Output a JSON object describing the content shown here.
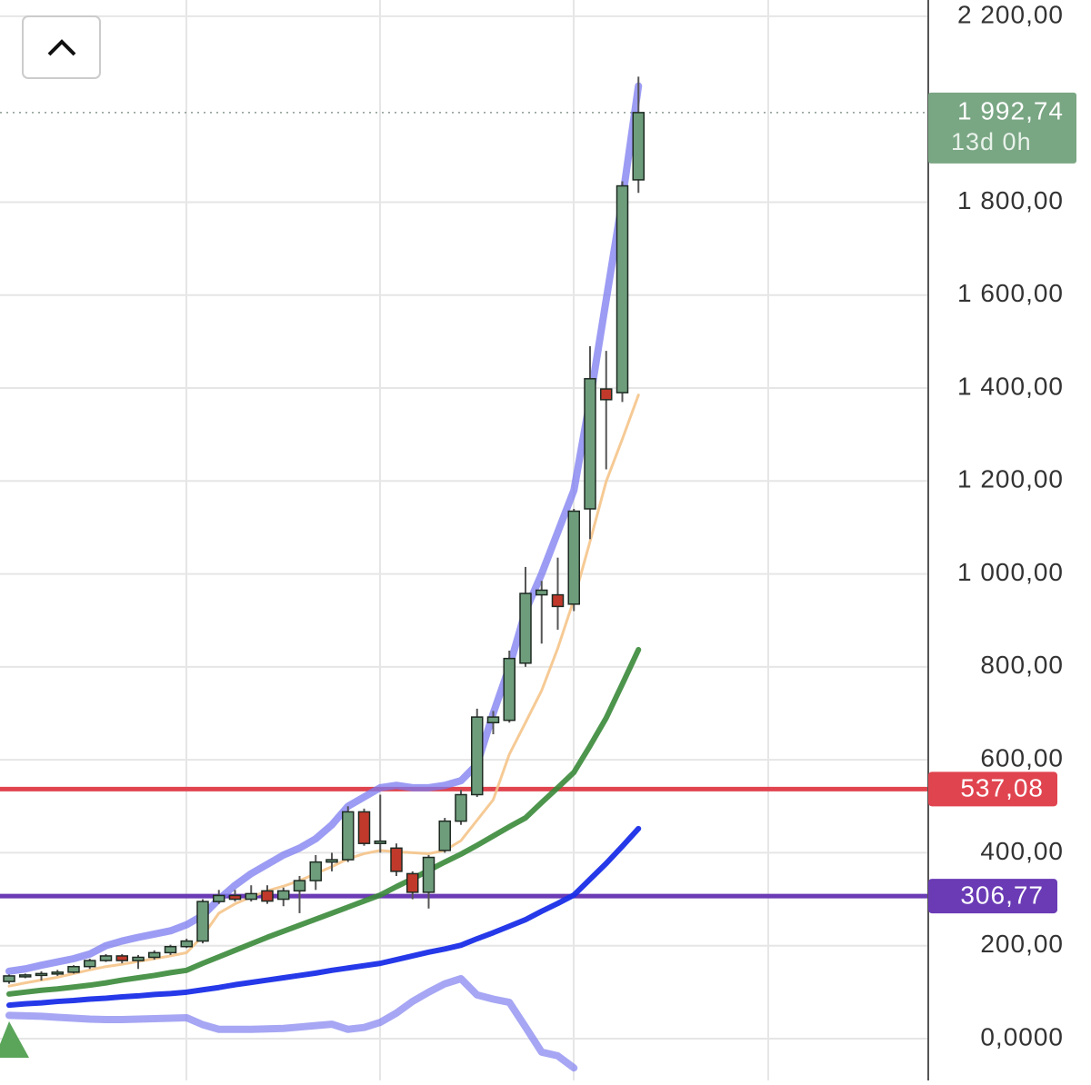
{
  "chart_data": {
    "type": "candlestick",
    "open": [
      123,
      135,
      137,
      140,
      143,
      155,
      168,
      178,
      168,
      175,
      185,
      198,
      210,
      295,
      308,
      300,
      318,
      300,
      318,
      340,
      380,
      385,
      488,
      420,
      410,
      355,
      315,
      405,
      468,
      525,
      680,
      685,
      808,
      955,
      955,
      935,
      1140,
      1398,
      1390,
      1848
    ],
    "high": [
      138,
      140,
      145,
      148,
      158,
      172,
      182,
      182,
      180,
      190,
      202,
      215,
      300,
      320,
      320,
      330,
      330,
      325,
      350,
      395,
      400,
      500,
      495,
      525,
      420,
      360,
      395,
      475,
      535,
      710,
      705,
      835,
      1015,
      985,
      1035,
      1140,
      1490,
      1480,
      1845,
      2070
    ],
    "low": [
      118,
      130,
      125,
      135,
      140,
      150,
      165,
      162,
      150,
      170,
      180,
      195,
      205,
      290,
      295,
      295,
      290,
      285,
      270,
      320,
      360,
      380,
      415,
      400,
      350,
      300,
      280,
      400,
      460,
      520,
      655,
      680,
      800,
      850,
      880,
      920,
      1075,
      1225,
      1370,
      1820
    ],
    "close": [
      135,
      137,
      140,
      143,
      155,
      168,
      178,
      168,
      175,
      185,
      198,
      210,
      295,
      308,
      300,
      312,
      296,
      318,
      340,
      380,
      385,
      488,
      420,
      425,
      360,
      315,
      390,
      468,
      525,
      692,
      692,
      818,
      958,
      965,
      930,
      1135,
      1420,
      1375,
      1835,
      1992.74
    ],
    "up_color": "#6e9d7c",
    "down_color": "#c0392b",
    "overlays": [
      {
        "color": "#7b7bf0",
        "values": [
          145,
          150,
          158,
          165,
          172,
          182,
          200,
          210,
          218,
          225,
          232,
          245,
          265,
          300,
          330,
          355,
          375,
          395,
          410,
          430,
          460,
          500,
          520,
          540,
          545,
          540,
          540,
          545,
          555,
          590,
          700,
          800,
          920,
          1000,
          1090,
          1180,
          1375,
          1590,
          1805,
          2050
        ]
      },
      {
        "color": "#f5c48a",
        "values": [
          113,
          120,
          126,
          132,
          140,
          148,
          155,
          160,
          166,
          172,
          178,
          185,
          221,
          270,
          290,
          305,
          318,
          328,
          340,
          355,
          370,
          387,
          398,
          405,
          402,
          400,
          398,
          405,
          426,
          470,
          514,
          612,
          680,
          749,
          840,
          945,
          1070,
          1199,
          1290,
          1385
        ]
      },
      {
        "color": "#3a8a3a",
        "values": [
          96,
          100,
          104,
          107,
          111,
          115,
          120,
          126,
          131,
          136,
          142,
          147,
          162,
          176,
          190,
          204,
          218,
          231,
          244,
          257,
          270,
          283,
          296,
          309,
          327,
          344,
          362,
          380,
          397,
          416,
          436,
          456,
          475,
          508,
          540,
          573,
          630,
          690,
          763,
          837
        ]
      },
      {
        "color": "#1a2ee8",
        "values": [
          72,
          75,
          77,
          80,
          82,
          85,
          87,
          90,
          92,
          95,
          97,
          100,
          105,
          110,
          116,
          121,
          126,
          131,
          136,
          141,
          147,
          152,
          157,
          162,
          170,
          178,
          186,
          193,
          201,
          215,
          228,
          242,
          256,
          274,
          291,
          309,
          343,
          377,
          414,
          452
        ]
      },
      {
        "color": "#8080f0",
        "values": [
          50,
          49,
          48,
          46,
          44,
          42,
          41,
          41,
          42,
          43,
          44,
          45,
          30,
          20,
          20,
          20,
          21,
          22,
          25,
          28,
          31,
          20,
          24,
          35,
          55,
          80,
          100,
          118,
          129,
          94,
          85,
          78,
          25,
          -29,
          -37,
          -63,
          null,
          null,
          null,
          null
        ]
      }
    ],
    "price_lines": [
      {
        "value": 537.08,
        "label": "537,08",
        "color": "#e0444f"
      },
      {
        "value": 306.77,
        "label": "306,77",
        "color": "#6a3bb5"
      }
    ],
    "last_price": {
      "value": 1992.74,
      "label": "1 992,74",
      "countdown": "13d 0h",
      "color": "#79a683"
    },
    "ylim": [
      -90,
      2235
    ],
    "yticks": [
      {
        "value": 0,
        "label": "0,0000"
      },
      {
        "value": 200,
        "label": "200,00"
      },
      {
        "value": 400,
        "label": "400,00"
      },
      {
        "value": 600,
        "label": "600,00"
      },
      {
        "value": 800,
        "label": "800,00"
      },
      {
        "value": 1000,
        "label": "1 000,00"
      },
      {
        "value": 1200,
        "label": "1 200,00"
      },
      {
        "value": 1400,
        "label": "1 400,00"
      },
      {
        "value": 1600,
        "label": "1 600,00"
      },
      {
        "value": 1800,
        "label": "1 800,00"
      },
      {
        "value": 2200,
        "label": "2 200,00"
      }
    ],
    "grid": true
  }
}
